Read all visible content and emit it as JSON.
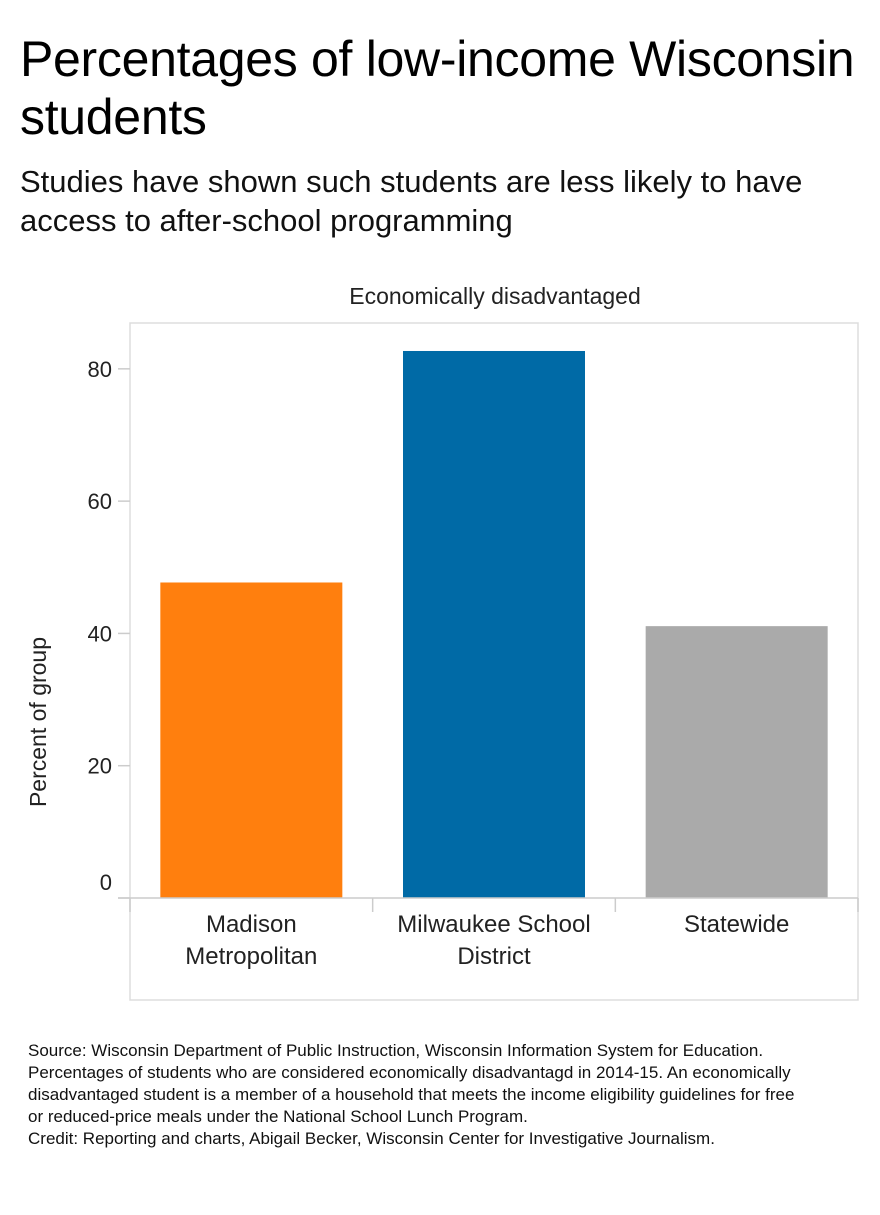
{
  "header": {
    "title": "Percentages of low-income Wisconsin students",
    "subtitle": "Studies have shown such students are less likely to have access to after-school programming"
  },
  "chart_data": {
    "type": "bar",
    "title": "Economically disadvantaged",
    "ylabel": "Percent of group",
    "xlabel": "",
    "categories": [
      [
        "Madison",
        "Metropolitan"
      ],
      [
        "Milwaukee School",
        "District"
      ],
      [
        "Statewide"
      ]
    ],
    "values": [
      47.7,
      82.7,
      41.1
    ],
    "colors": [
      "#ff7f0e",
      "#006aa6",
      "#aaaaaa"
    ],
    "ylim": [
      0,
      83
    ],
    "yticks": [
      0,
      20,
      40,
      60,
      80
    ],
    "grid": false
  },
  "footer": {
    "source": "Source: Wisconsin Department of Public Instruction, Wisconsin Information System for Education. Percentages of students who are considered economically disadvantagd in 2014-15. An economically disadvantaged student is a member of a household that meets the income eligibility guidelines for free or reduced-price meals under the National School Lunch Program.",
    "credit": "Credit: Reporting and charts, Abigail Becker, Wisconsin Center for Investigative Journalism."
  }
}
